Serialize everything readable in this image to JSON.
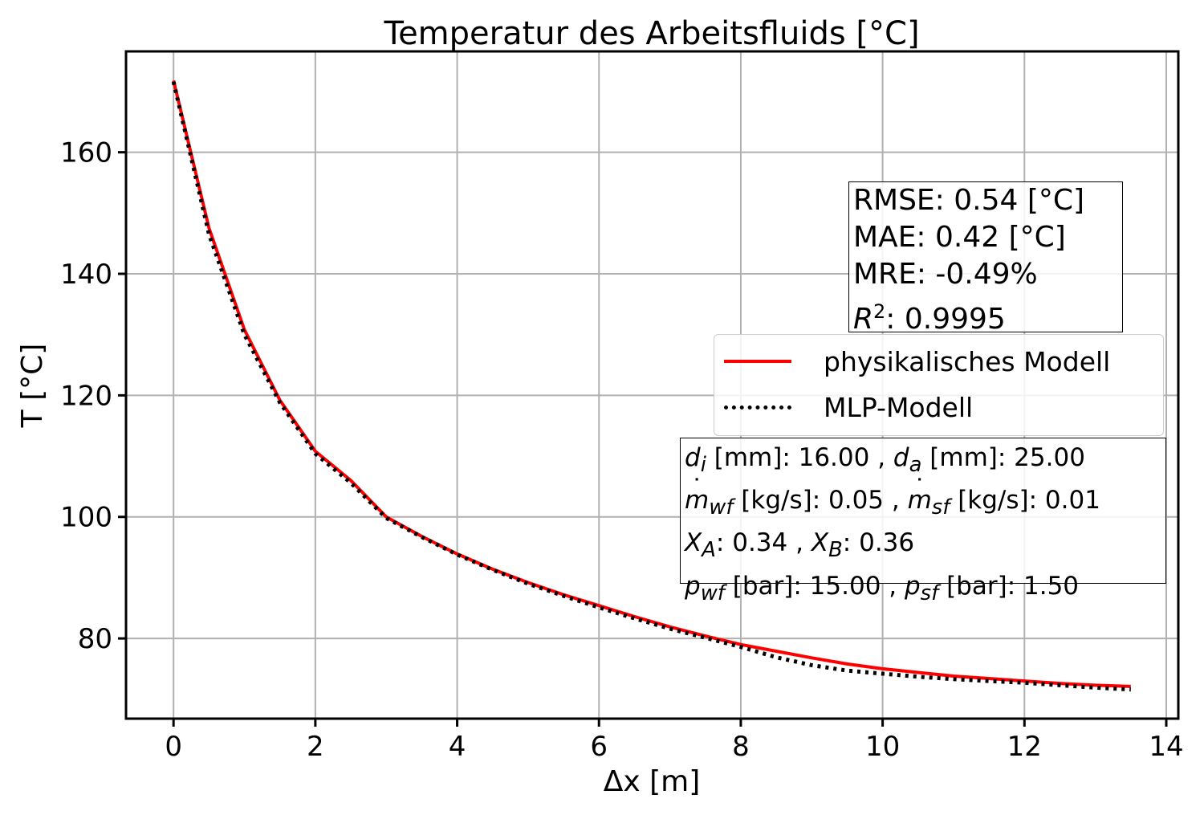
{
  "chart_data": {
    "type": "line",
    "title": "Temperatur des Arbeitsfluids [°C]",
    "xlabel": "Δx [m]",
    "ylabel": "T [°C]",
    "xlim": [
      -0.67,
      14.17
    ],
    "ylim": [
      66.8,
      176.6
    ],
    "xticks": [
      0,
      2,
      4,
      6,
      8,
      10,
      12,
      14
    ],
    "yticks": [
      80,
      100,
      120,
      140,
      160
    ],
    "grid": true,
    "legend_position": "center-right",
    "series": [
      {
        "name": "physikalisches Modell",
        "color": "#ff0000",
        "style": "solid",
        "x": [
          0,
          0.5,
          1.0,
          1.5,
          2.0,
          2.5,
          3.0,
          3.5,
          4.0,
          4.5,
          5.0,
          5.5,
          6.0,
          6.5,
          7.0,
          7.5,
          8.0,
          8.5,
          9.0,
          9.5,
          10.0,
          10.5,
          11.0,
          11.5,
          12.0,
          12.5,
          13.0,
          13.5
        ],
        "y": [
          171.8,
          147.5,
          130.8,
          119.2,
          110.8,
          106.0,
          100.0,
          96.8,
          93.9,
          91.4,
          89.2,
          87.2,
          85.4,
          83.6,
          81.9,
          80.4,
          79.0,
          77.9,
          76.8,
          75.8,
          75.0,
          74.4,
          73.8,
          73.4,
          73.0,
          72.6,
          72.3,
          72.1
        ]
      },
      {
        "name": "MLP-Modell",
        "color": "#000000",
        "style": "dotted",
        "x": [
          0,
          0.5,
          1.0,
          1.5,
          2.0,
          2.5,
          3.0,
          3.5,
          4.0,
          4.5,
          5.0,
          5.5,
          6.0,
          6.5,
          7.0,
          7.5,
          8.0,
          8.5,
          9.0,
          9.5,
          10.0,
          10.5,
          11.0,
          11.5,
          12.0,
          12.5,
          13.0,
          13.5
        ],
        "y": [
          171.6,
          146.5,
          130.0,
          118.8,
          110.4,
          105.6,
          99.8,
          96.7,
          93.8,
          91.3,
          89.0,
          87.0,
          85.1,
          83.3,
          81.6,
          80.1,
          78.6,
          76.9,
          75.6,
          74.7,
          74.2,
          73.7,
          73.3,
          73.0,
          72.7,
          72.3,
          71.9,
          71.6
        ]
      }
    ],
    "annotations": {
      "stats": [
        "RMSE: 0.54 [°C]",
        "MAE: 0.42 [°C]",
        "MRE: -0.49%",
        {
          "sym": "R",
          "sup": "2",
          "text": ": 0.9995"
        }
      ],
      "params": [
        [
          {
            "sym": "d",
            "sub": "i",
            "text": " [mm]: 16.00 , "
          },
          {
            "sym": "d",
            "sub": "a",
            "text": " [mm]: 25.00"
          }
        ],
        [
          {
            "sym": "m",
            "dot": true,
            "sub": "wf",
            "text": " [kg/s]: 0.05 , "
          },
          {
            "sym": "m",
            "dot": true,
            "sub": "sf",
            "text": " [kg/s]: 0.01"
          }
        ],
        [
          {
            "sym": "X",
            "sub": "A",
            "text": ": 0.34 , "
          },
          {
            "sym": "X",
            "sub": "B",
            "text": ": 0.36"
          }
        ],
        [
          {
            "sym": "p",
            "sub": "wf",
            "text": " [bar]: 15.00 , "
          },
          {
            "sym": "p",
            "sub": "sf",
            "text": " [bar]: 1.50"
          }
        ]
      ]
    }
  }
}
